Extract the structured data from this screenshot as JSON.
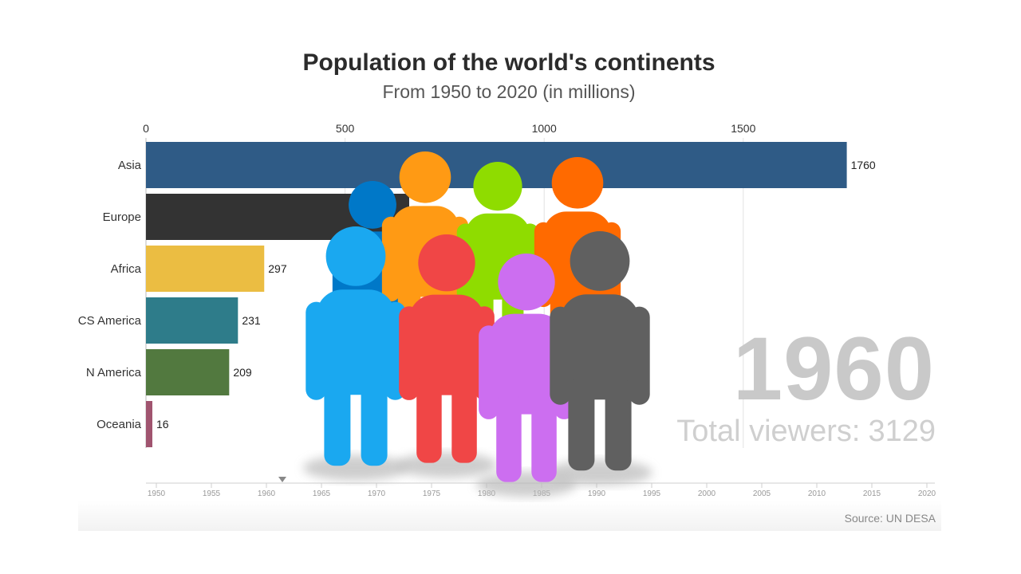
{
  "chart_data": {
    "type": "bar",
    "title": "Population of the world's continents",
    "subtitle": "From 1950 to 2020 (in millions)",
    "orientation": "horizontal",
    "categories": [
      "Asia",
      "Europe",
      "Africa",
      "CS America",
      "N America",
      "Oceania"
    ],
    "values": [
      1760,
      null,
      297,
      231,
      209,
      16
    ],
    "value_labels": [
      "1760",
      "",
      "297",
      "231",
      "209",
      "16"
    ],
    "value_axis": {
      "ticks": [
        0,
        500,
        1000,
        1500
      ],
      "range": [
        0,
        1850
      ],
      "position": "top",
      "grid": true
    },
    "bar_colors": [
      "#2f5b86",
      "#333333",
      "#ebbd42",
      "#2e7c8a",
      "#52793f",
      "#a0546f"
    ],
    "timeline": {
      "ticks": [
        "1950",
        "1955",
        "1960",
        "1965",
        "1970",
        "1975",
        "1980",
        "1985",
        "1990",
        "1995",
        "2000",
        "2005",
        "2010",
        "2015",
        "2020"
      ],
      "range": [
        1950,
        2020
      ],
      "marker_year": 1960
    },
    "current_year": "1960",
    "total_viewers_label": "Total viewers:",
    "total_viewers_value": "3129",
    "source": "Source: UN DESA"
  },
  "figures": {
    "colors": [
      "#0078c8",
      "#ff9a14",
      "#8fdc00",
      "#ff6a00",
      "#1aa8f0",
      "#f04646",
      "#cc6ef0",
      "#606060"
    ]
  }
}
